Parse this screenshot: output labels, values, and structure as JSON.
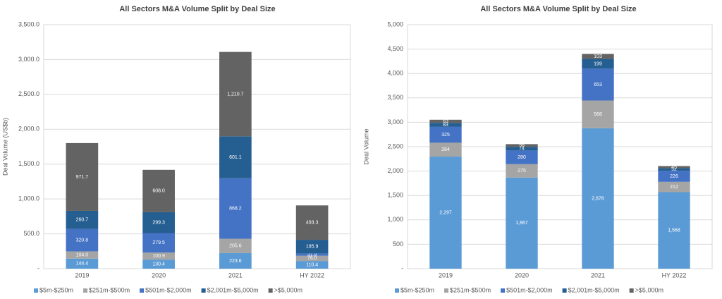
{
  "chart_data": [
    {
      "type": "stacked_bar",
      "title": "All Sectors M&A Volume Split by Deal Size",
      "y_label": "Deal Volume (US$b)",
      "categories": [
        "2019",
        "2020",
        "2021",
        "HY 2022"
      ],
      "ylim": [
        0,
        3500
      ],
      "yticks": [
        {
          "value": 0,
          "label": "-"
        },
        {
          "value": 500,
          "label": "500.0"
        },
        {
          "value": 1000,
          "label": "1,000.0"
        },
        {
          "value": 1500,
          "label": "1,500.0"
        },
        {
          "value": 2000,
          "label": "2,000.0"
        },
        {
          "value": 2500,
          "label": "2,500.0"
        },
        {
          "value": 3000,
          "label": "3,000.0"
        },
        {
          "value": 3500,
          "label": "3,500.0"
        }
      ],
      "grid": true,
      "series": [
        {
          "name": "$5m-$250m",
          "color": "#5b9bd5",
          "values": [
            144.4,
            130.4,
            223.6,
            110.4
          ],
          "value_labels": [
            "144.4",
            "130.4",
            "223.6",
            "110.4"
          ]
        },
        {
          "name": "$251m-$500m",
          "color": "#a5a5a5",
          "values": [
            104,
            100.9,
            205.6,
            76
          ],
          "value_labels": [
            "104.0",
            "100.9",
            "205.6",
            "76.0"
          ]
        },
        {
          "name": "$501m-$2,000m",
          "color": "#4472c4",
          "values": [
            320.8,
            279.5,
            868.2,
            31.9
          ],
          "value_labels": [
            "320.8",
            "279.5",
            "868.2",
            "31.9"
          ]
        },
        {
          "name": "$2,001m-$5,000m",
          "color": "#255e91",
          "values": [
            260.7,
            299.3,
            601.1,
            195.9
          ],
          "value_labels": [
            "260.7",
            "299.3",
            "601.1",
            "195.9"
          ]
        },
        {
          "name": ">$5,000m",
          "color": "#636363",
          "values": [
            971.7,
            608,
            1210.7,
            493.3
          ],
          "value_labels": [
            "971.7",
            "608.0",
            "1,210.7",
            "493.3"
          ]
        }
      ]
    },
    {
      "type": "stacked_bar",
      "title": "All Sectors M&A Volume Split by Deal Size",
      "y_label": "Deal Volume",
      "categories": [
        "2019",
        "2020",
        "2021",
        "HY 2022"
      ],
      "ylim": [
        0,
        5000
      ],
      "yticks": [
        {
          "value": 0,
          "label": "-"
        },
        500,
        {
          "value": 1000,
          "label": "1,000"
        },
        {
          "value": 1500,
          "label": "1,500"
        },
        {
          "value": 2000,
          "label": "2,000"
        },
        {
          "value": 2500,
          "label": "2,500"
        },
        {
          "value": 3000,
          "label": "3,000"
        },
        {
          "value": 3500,
          "label": "3,500"
        },
        {
          "value": 4000,
          "label": "4,000"
        },
        {
          "value": 4500,
          "label": "4,500"
        },
        {
          "value": 5000,
          "label": "5,000"
        }
      ],
      "grid": true,
      "series": [
        {
          "name": "$5m-$250m",
          "color": "#5b9bd5",
          "values": [
            2297,
            1867,
            2878,
            1568
          ],
          "value_labels": [
            "2,297",
            "1,867",
            "2,878",
            "1,568"
          ]
        },
        {
          "name": "$251m-$500m",
          "color": "#a5a5a5",
          "values": [
            284,
            275,
            568,
            212
          ],
          "value_labels": [
            "284",
            "275",
            "568",
            "212"
          ]
        },
        {
          "name": "$501m-$2,000m",
          "color": "#4472c4",
          "values": [
            325,
            280,
            653,
            226
          ],
          "value_labels": [
            "325",
            "280",
            "653",
            "226"
          ]
        },
        {
          "name": "$2,001m-$5,000m",
          "color": "#255e91",
          "values": [
            83,
            74,
            199,
            52
          ],
          "value_labels": [
            "83",
            "74",
            "199",
            "52"
          ]
        },
        {
          "name": ">$5,000m",
          "color": "#636363",
          "values": [
            63,
            56,
            103,
            45
          ],
          "value_labels": [
            "63",
            "56",
            "103",
            "45"
          ]
        }
      ]
    }
  ]
}
